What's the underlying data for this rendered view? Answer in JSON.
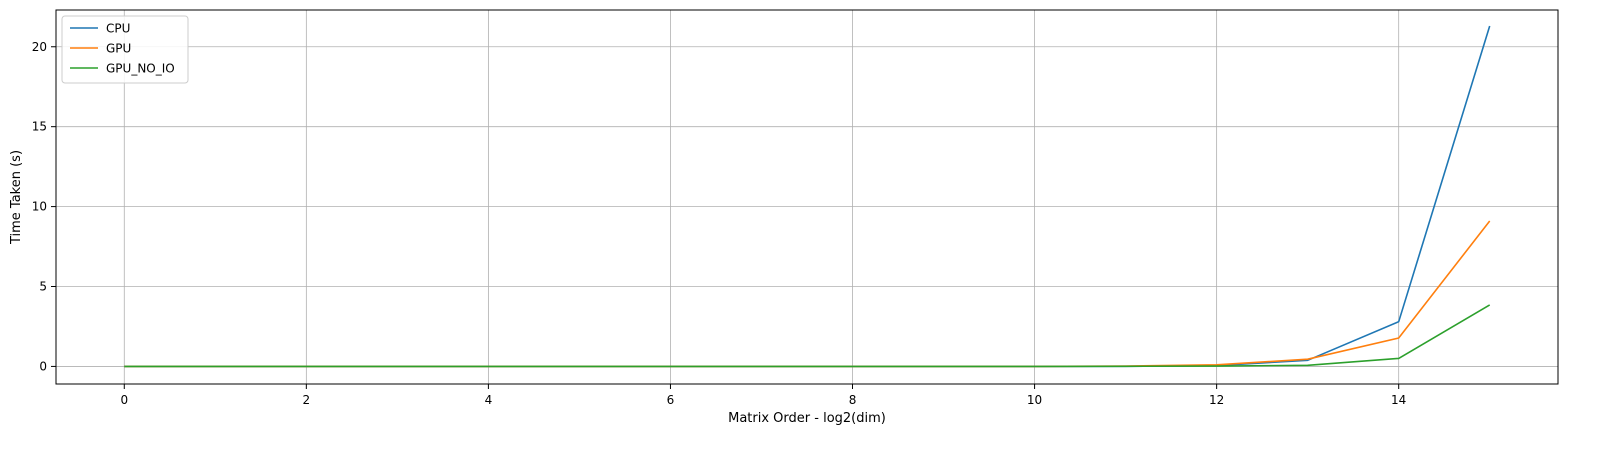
{
  "chart_data": {
    "type": "line",
    "title": "",
    "xlabel": "Matrix Order - log2(dim)",
    "ylabel": "Time Taken (s)",
    "xlim": [
      -0.75,
      15.75
    ],
    "ylim": [
      -1.1,
      22.3
    ],
    "xticks": [
      0,
      2,
      4,
      6,
      8,
      10,
      12,
      14
    ],
    "yticks": [
      0,
      5,
      10,
      15,
      20
    ],
    "grid": true,
    "legend_position": "top-left",
    "x": [
      0,
      1,
      2,
      3,
      4,
      5,
      6,
      7,
      8,
      9,
      10,
      11,
      12,
      13,
      14,
      15
    ],
    "series": [
      {
        "name": "CPU",
        "color": "#1f77b4",
        "values": [
          0,
          0,
          0,
          0,
          0,
          0,
          0,
          0,
          0,
          0,
          0,
          0.01,
          0.05,
          0.38,
          2.8,
          21.3
        ]
      },
      {
        "name": "GPU",
        "color": "#ff7f0e",
        "values": [
          0,
          0,
          0,
          0,
          0,
          0,
          0,
          0,
          0,
          0,
          0,
          0.02,
          0.1,
          0.45,
          1.78,
          9.1
        ]
      },
      {
        "name": "GPU_NO_IO",
        "color": "#2ca02c",
        "values": [
          0,
          0,
          0,
          0,
          0,
          0,
          0,
          0,
          0,
          0,
          0,
          0.005,
          0.02,
          0.07,
          0.5,
          3.85
        ]
      }
    ]
  }
}
